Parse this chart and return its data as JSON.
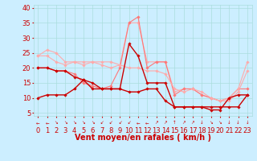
{
  "xlabel": "Vent moyen/en rafales ( km/h )",
  "background_color": "#cceeff",
  "grid_color": "#aadddd",
  "xlim": [
    -0.5,
    23.5
  ],
  "ylim": [
    4,
    41
  ],
  "yticks": [
    5,
    10,
    15,
    20,
    25,
    30,
    35,
    40
  ],
  "xticks": [
    0,
    1,
    2,
    3,
    4,
    5,
    6,
    7,
    8,
    9,
    10,
    11,
    12,
    13,
    14,
    15,
    16,
    17,
    18,
    19,
    20,
    21,
    22,
    23
  ],
  "series": [
    {
      "x": [
        0,
        1,
        2,
        3,
        4,
        5,
        6,
        7,
        8,
        9,
        10,
        11,
        12,
        13,
        14,
        15,
        16,
        17,
        18,
        19,
        20,
        21,
        22,
        23
      ],
      "y": [
        20,
        20,
        19,
        19,
        17,
        16,
        15,
        13,
        13,
        13,
        28,
        24,
        15,
        15,
        15,
        7,
        7,
        7,
        7,
        7,
        7,
        7,
        7,
        11
      ],
      "color": "#cc0000",
      "marker": "D",
      "markersize": 1.8,
      "linewidth": 1.0,
      "zorder": 5
    },
    {
      "x": [
        0,
        1,
        2,
        3,
        4,
        5,
        6,
        7,
        8,
        9,
        10,
        11,
        12,
        13,
        14,
        15,
        16,
        17,
        18,
        19,
        20,
        21,
        22,
        23
      ],
      "y": [
        10,
        11,
        11,
        11,
        13,
        16,
        13,
        13,
        13,
        13,
        12,
        12,
        13,
        13,
        9,
        7,
        7,
        7,
        7,
        6,
        6,
        10,
        11,
        11
      ],
      "color": "#cc0000",
      "marker": "D",
      "markersize": 1.8,
      "linewidth": 1.0,
      "zorder": 4
    },
    {
      "x": [
        0,
        1,
        2,
        3,
        4,
        5,
        6,
        7,
        8,
        9,
        10,
        11,
        12,
        13,
        14,
        15,
        16,
        17,
        18,
        19,
        20,
        21,
        22,
        23
      ],
      "y": [
        24,
        24,
        22,
        21,
        22,
        21,
        22,
        21,
        20,
        21,
        20,
        20,
        19,
        19,
        18,
        13,
        12,
        13,
        12,
        10,
        9,
        10,
        13,
        22
      ],
      "color": "#ffaaaa",
      "marker": "D",
      "markersize": 1.8,
      "linewidth": 0.8,
      "zorder": 3
    },
    {
      "x": [
        0,
        1,
        2,
        3,
        4,
        5,
        6,
        7,
        8,
        9,
        10,
        11,
        12,
        13,
        14,
        15,
        16,
        17,
        18,
        19,
        20,
        21,
        22,
        23
      ],
      "y": [
        24,
        26,
        25,
        22,
        22,
        22,
        22,
        22,
        22,
        21,
        35,
        35,
        22,
        22,
        22,
        12,
        13,
        13,
        11,
        10,
        9,
        9,
        12,
        19
      ],
      "color": "#ffaaaa",
      "marker": "D",
      "markersize": 1.8,
      "linewidth": 0.8,
      "zorder": 2
    },
    {
      "x": [
        0,
        1,
        2,
        3,
        4,
        5,
        6,
        7,
        8,
        9,
        10,
        11,
        12,
        13,
        14,
        15,
        16,
        17,
        18,
        19,
        20,
        21,
        22,
        23
      ],
      "y": [
        20,
        20,
        19,
        19,
        18,
        15,
        14,
        13,
        14,
        20,
        35,
        37,
        20,
        22,
        22,
        11,
        13,
        13,
        11,
        10,
        9,
        10,
        13,
        13
      ],
      "color": "#ff7777",
      "marker": "D",
      "markersize": 1.8,
      "linewidth": 0.8,
      "zorder": 2
    }
  ],
  "arrows": [
    "←",
    "←",
    "↘",
    "↘",
    "↘",
    "↘",
    "↘",
    "↙",
    "↙",
    "↙",
    "↙",
    "←",
    "←",
    "↗",
    "↗",
    "↑",
    "↗",
    "↗",
    "↓",
    "↘",
    "↘",
    "↓",
    "↓",
    "↓"
  ],
  "xlabel_fontsize": 7,
  "tick_fontsize": 6,
  "tick_color": "#cc0000",
  "xlabel_color": "#cc0000",
  "ylabel_fontsize": 6
}
